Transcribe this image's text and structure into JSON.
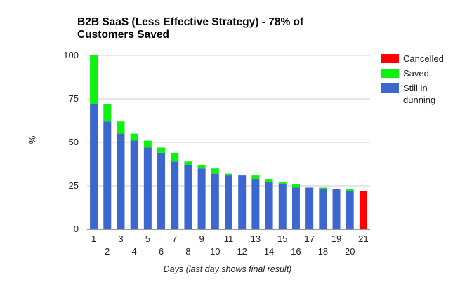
{
  "chart_data": {
    "type": "bar",
    "stacked": true,
    "title_lines": [
      "B2B SaaS (Less Effective Strategy) - 78% of",
      "Customers Saved"
    ],
    "xlabel": "Days (last day shows final result)",
    "ylabel": "%",
    "ylim": [
      0,
      100
    ],
    "yticks": [
      0,
      25,
      50,
      75,
      100
    ],
    "grid": true,
    "legend_position": "right",
    "categories": [
      "1",
      "2",
      "3",
      "4",
      "5",
      "6",
      "7",
      "8",
      "9",
      "10",
      "11",
      "12",
      "13",
      "14",
      "15",
      "16",
      "17",
      "18",
      "19",
      "20",
      "21"
    ],
    "series": [
      {
        "name": "Still in dunning",
        "color": "#3c67cf",
        "values": [
          72,
          62,
          55,
          51,
          47,
          44,
          39,
          37,
          35,
          32,
          31,
          31,
          29,
          27,
          26,
          24,
          24,
          23,
          23,
          22,
          0
        ]
      },
      {
        "name": "Saved",
        "color": "#0df210",
        "values": [
          28,
          10,
          7,
          4,
          4,
          3,
          5,
          2,
          2,
          3,
          1,
          0,
          2,
          2,
          1,
          2,
          0,
          1,
          0,
          1,
          0
        ]
      },
      {
        "name": "Cancelled",
        "color": "#ff0000",
        "values": [
          0,
          0,
          0,
          0,
          0,
          0,
          0,
          0,
          0,
          0,
          0,
          0,
          0,
          0,
          0,
          0,
          0,
          0,
          0,
          0,
          22
        ]
      }
    ],
    "legend": [
      {
        "label": "Cancelled",
        "color": "#ff0000"
      },
      {
        "label": "Saved",
        "color": "#0df210"
      },
      {
        "label": "Still in dunning",
        "color": "#3c67cf"
      }
    ]
  }
}
